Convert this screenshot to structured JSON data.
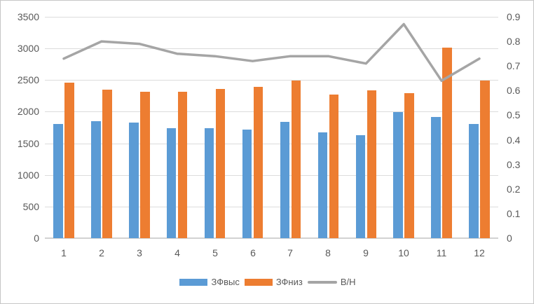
{
  "chart_data": {
    "type": "combo",
    "title": "",
    "xlabel": "",
    "ylabel": "",
    "categories": [
      "1",
      "2",
      "3",
      "4",
      "5",
      "6",
      "7",
      "8",
      "9",
      "10",
      "11",
      "12"
    ],
    "series": [
      {
        "name": "ЗФвыс",
        "type": "bar",
        "axis": "left",
        "color": "#5B9BD5",
        "values": [
          1800,
          1850,
          1825,
          1735,
          1735,
          1720,
          1840,
          1675,
          1630,
          1990,
          1920,
          1805
        ]
      },
      {
        "name": "ЗФниз",
        "type": "bar",
        "axis": "left",
        "color": "#ED7D31",
        "values": [
          2460,
          2345,
          2310,
          2320,
          2360,
          2395,
          2490,
          2270,
          2340,
          2290,
          3010,
          2490
        ]
      },
      {
        "name": "В/Н",
        "type": "line",
        "axis": "right",
        "color": "#A5A5A5",
        "values": [
          0.73,
          0.8,
          0.79,
          0.75,
          0.74,
          0.72,
          0.74,
          0.74,
          0.71,
          0.87,
          0.64,
          0.73
        ]
      }
    ],
    "left_axis": {
      "min": 0,
      "max": 3500,
      "step": 500,
      "ticks": [
        "3500",
        "3000",
        "2500",
        "2000",
        "1500",
        "1000",
        "500",
        "0"
      ]
    },
    "right_axis": {
      "min": 0,
      "max": 0.9,
      "step": 0.1,
      "ticks": [
        "0.9",
        "0.8",
        "0.7",
        "0.6",
        "0.5",
        "0.4",
        "0.3",
        "0.2",
        "0.1",
        "0"
      ]
    },
    "grid": true,
    "legend_position": "bottom",
    "colors": {
      "grid_line": "#DCDCDC",
      "axis_line": "#D2D2D2",
      "axis_label": "#595959",
      "background": "#FFFFFF",
      "border": "#C6C6C6"
    }
  }
}
